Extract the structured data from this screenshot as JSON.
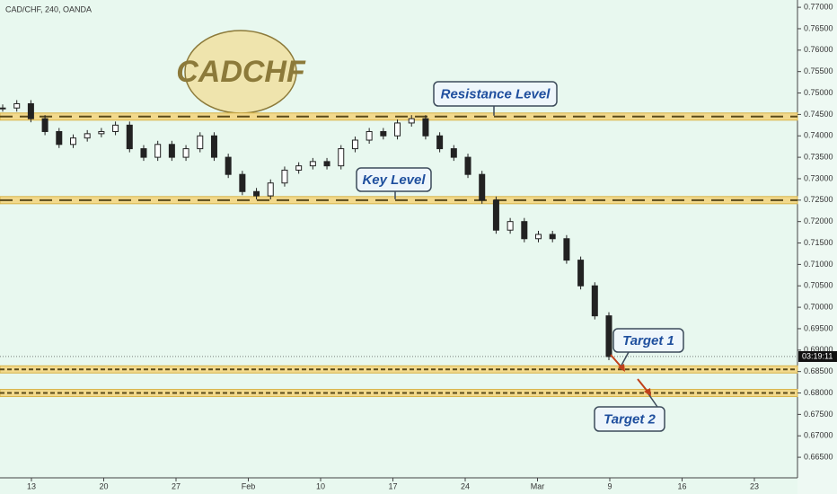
{
  "chart_data": {
    "type": "candlestick",
    "title": "CAD/CHF, 240, OANDA",
    "badge": "CADCHF",
    "series": [
      {
        "name": "CADCHF",
        "color": "#222222",
        "values": [
          0.7465,
          0.7475,
          0.744,
          0.741,
          0.738,
          0.7395,
          0.7405,
          0.741,
          0.7425,
          0.737,
          0.735,
          0.738,
          0.735,
          0.737,
          0.74,
          0.735,
          0.731,
          0.727,
          0.726,
          0.729,
          0.732,
          0.733,
          0.734,
          0.733,
          0.737,
          0.739,
          0.741,
          0.74,
          0.743,
          0.744,
          0.74,
          0.737,
          0.735,
          0.731,
          0.725,
          0.718,
          0.72,
          0.716,
          0.717,
          0.716,
          0.711,
          0.705,
          0.698,
          0.6885
        ]
      }
    ],
    "levels": [
      {
        "name": "Resistance Level",
        "value": 0.7445
      },
      {
        "name": "Key Level",
        "value": 0.725
      },
      {
        "name": "Target 1",
        "value": 0.6855
      },
      {
        "name": "Target 2",
        "value": 0.68
      }
    ],
    "current_price": 0.6885,
    "countdown": "03:19:11",
    "xticks": [
      "13",
      "20",
      "27",
      "Feb",
      "10",
      "17",
      "24",
      "Mar",
      "9",
      "16",
      "23"
    ],
    "ylim": [
      0.6602,
      0.7717
    ],
    "yticks": [
      {
        "value": 0.665,
        "label": "0.66500"
      },
      {
        "value": 0.67,
        "label": "0.67000"
      },
      {
        "value": 0.675,
        "label": "0.67500"
      },
      {
        "value": 0.68,
        "label": "0.68000"
      },
      {
        "value": 0.685,
        "label": "0.68500"
      },
      {
        "value": 0.69,
        "label": "0.69000"
      },
      {
        "value": 0.695,
        "label": "0.69500"
      },
      {
        "value": 0.7,
        "label": "0.70000"
      },
      {
        "value": 0.705,
        "label": "0.70500"
      },
      {
        "value": 0.71,
        "label": "0.71000"
      },
      {
        "value": 0.715,
        "label": "0.71500"
      },
      {
        "value": 0.72,
        "label": "0.72000"
      },
      {
        "value": 0.725,
        "label": "0.72500"
      },
      {
        "value": 0.73,
        "label": "0.73000"
      },
      {
        "value": 0.735,
        "label": "0.73500"
      },
      {
        "value": 0.74,
        "label": "0.74000"
      },
      {
        "value": 0.745,
        "label": "0.74500"
      },
      {
        "value": 0.75,
        "label": "0.75000"
      },
      {
        "value": 0.755,
        "label": "0.75500"
      },
      {
        "value": 0.76,
        "label": "0.76000"
      },
      {
        "value": 0.765,
        "label": "0.76500"
      },
      {
        "value": 0.77,
        "label": "0.77000"
      }
    ]
  }
}
